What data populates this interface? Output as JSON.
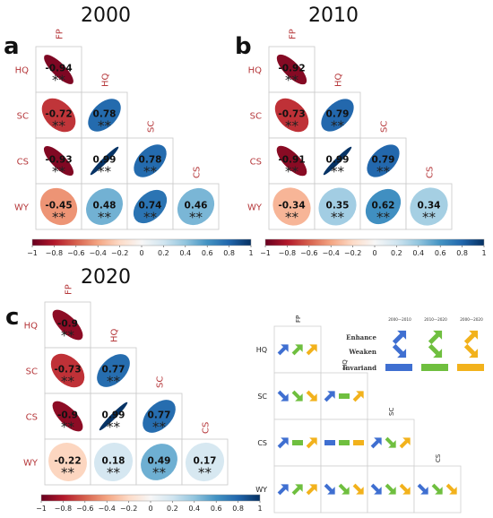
{
  "chart_data": [
    {
      "type": "heatmap",
      "panel_label": "a",
      "title": "2000",
      "variables": [
        "FP",
        "HQ",
        "SC",
        "CS",
        "WY"
      ],
      "significance_mark": "**",
      "colorbar": {
        "min": -1,
        "max": 1,
        "ticks": [
          "−1",
          "−0.8",
          "−0.6",
          "−0.4",
          "−0.2",
          "0",
          "0.2",
          "0.4",
          "0.6",
          "0.8",
          "1"
        ]
      },
      "cells": [
        {
          "row": "HQ",
          "col": "FP",
          "value": -0.94,
          "label": "-0.94"
        },
        {
          "row": "SC",
          "col": "FP",
          "value": -0.72,
          "label": "-0.72"
        },
        {
          "row": "SC",
          "col": "HQ",
          "value": 0.78,
          "label": "0.78"
        },
        {
          "row": "CS",
          "col": "FP",
          "value": -0.93,
          "label": "-0.93"
        },
        {
          "row": "CS",
          "col": "HQ",
          "value": 0.99,
          "label": "0.99"
        },
        {
          "row": "CS",
          "col": "SC",
          "value": 0.78,
          "label": "0.78"
        },
        {
          "row": "WY",
          "col": "FP",
          "value": -0.45,
          "label": "-0.45"
        },
        {
          "row": "WY",
          "col": "HQ",
          "value": 0.48,
          "label": "0.48"
        },
        {
          "row": "WY",
          "col": "SC",
          "value": 0.74,
          "label": "0.74"
        },
        {
          "row": "WY",
          "col": "CS",
          "value": 0.46,
          "label": "0.46"
        }
      ]
    },
    {
      "type": "heatmap",
      "panel_label": "b",
      "title": "2010",
      "variables": [
        "FP",
        "HQ",
        "SC",
        "CS",
        "WY"
      ],
      "significance_mark": "**",
      "colorbar": {
        "min": -1,
        "max": 1,
        "ticks": [
          "−1",
          "−0.8",
          "−0.6",
          "−0.4",
          "−0.2",
          "0",
          "0.2",
          "0.4",
          "0.6",
          "0.8",
          "1"
        ]
      },
      "cells": [
        {
          "row": "HQ",
          "col": "FP",
          "value": -0.92,
          "label": "-0.92"
        },
        {
          "row": "SC",
          "col": "FP",
          "value": -0.73,
          "label": "-0.73"
        },
        {
          "row": "SC",
          "col": "HQ",
          "value": 0.79,
          "label": "0.79"
        },
        {
          "row": "CS",
          "col": "FP",
          "value": -0.91,
          "label": "-0.91"
        },
        {
          "row": "CS",
          "col": "HQ",
          "value": 0.99,
          "label": "0.99"
        },
        {
          "row": "CS",
          "col": "SC",
          "value": 0.79,
          "label": "0.79"
        },
        {
          "row": "WY",
          "col": "FP",
          "value": -0.34,
          "label": "-0.34"
        },
        {
          "row": "WY",
          "col": "HQ",
          "value": 0.35,
          "label": "0.35"
        },
        {
          "row": "WY",
          "col": "SC",
          "value": 0.62,
          "label": "0.62"
        },
        {
          "row": "WY",
          "col": "CS",
          "value": 0.34,
          "label": "0.34"
        }
      ]
    },
    {
      "type": "heatmap",
      "panel_label": "c",
      "title": "2020",
      "variables": [
        "FP",
        "HQ",
        "SC",
        "CS",
        "WY"
      ],
      "significance_mark": "**",
      "colorbar": {
        "min": -1,
        "max": 1,
        "ticks": [
          "−1",
          "−0.8",
          "−0.6",
          "−0.4",
          "−0.2",
          "0",
          "0.2",
          "0.4",
          "0.6",
          "0.8",
          "1"
        ]
      },
      "cells": [
        {
          "row": "HQ",
          "col": "FP",
          "value": -0.9,
          "label": "-0.9"
        },
        {
          "row": "SC",
          "col": "FP",
          "value": -0.73,
          "label": "-0.73"
        },
        {
          "row": "SC",
          "col": "HQ",
          "value": 0.77,
          "label": "0.77"
        },
        {
          "row": "CS",
          "col": "FP",
          "value": -0.9,
          "label": "-0.9"
        },
        {
          "row": "CS",
          "col": "HQ",
          "value": 0.99,
          "label": "0.99"
        },
        {
          "row": "CS",
          "col": "SC",
          "value": 0.77,
          "label": "0.77"
        },
        {
          "row": "WY",
          "col": "FP",
          "value": -0.22,
          "label": "-0.22"
        },
        {
          "row": "WY",
          "col": "HQ",
          "value": 0.18,
          "label": "0.18"
        },
        {
          "row": "WY",
          "col": "SC",
          "value": 0.49,
          "label": "0.49"
        },
        {
          "row": "WY",
          "col": "CS",
          "value": 0.17,
          "label": "0.17"
        }
      ]
    },
    {
      "type": "table",
      "variables": [
        "FP",
        "HQ",
        "SC",
        "CS",
        "WY"
      ],
      "periods": [
        "2000—2010",
        "2010—2020",
        "2000—2020"
      ],
      "period_colors": [
        "#3f6fd1",
        "#6fbf3f",
        "#f2b21c"
      ],
      "legend": {
        "enhance": "Enhance",
        "weaken": "Weaken",
        "invariant": "Invariand"
      },
      "cells": [
        {
          "row": "HQ",
          "col": "FP",
          "trends": [
            "enhance",
            "enhance",
            "enhance"
          ]
        },
        {
          "row": "SC",
          "col": "FP",
          "trends": [
            "weaken",
            "weaken",
            "weaken"
          ]
        },
        {
          "row": "SC",
          "col": "HQ",
          "trends": [
            "enhance",
            "invariant",
            "enhance"
          ]
        },
        {
          "row": "CS",
          "col": "FP",
          "trends": [
            "enhance",
            "invariant",
            "enhance"
          ]
        },
        {
          "row": "CS",
          "col": "HQ",
          "trends": [
            "invariant",
            "invariant",
            "invariant"
          ]
        },
        {
          "row": "CS",
          "col": "SC",
          "trends": [
            "enhance",
            "weaken",
            "enhance"
          ]
        },
        {
          "row": "WY",
          "col": "FP",
          "trends": [
            "enhance",
            "enhance",
            "enhance"
          ]
        },
        {
          "row": "WY",
          "col": "HQ",
          "trends": [
            "weaken",
            "weaken",
            "weaken"
          ]
        },
        {
          "row": "WY",
          "col": "SC",
          "trends": [
            "weaken",
            "weaken",
            "weaken"
          ]
        },
        {
          "row": "WY",
          "col": "CS",
          "trends": [
            "weaken",
            "weaken",
            "weaken"
          ]
        }
      ]
    }
  ]
}
